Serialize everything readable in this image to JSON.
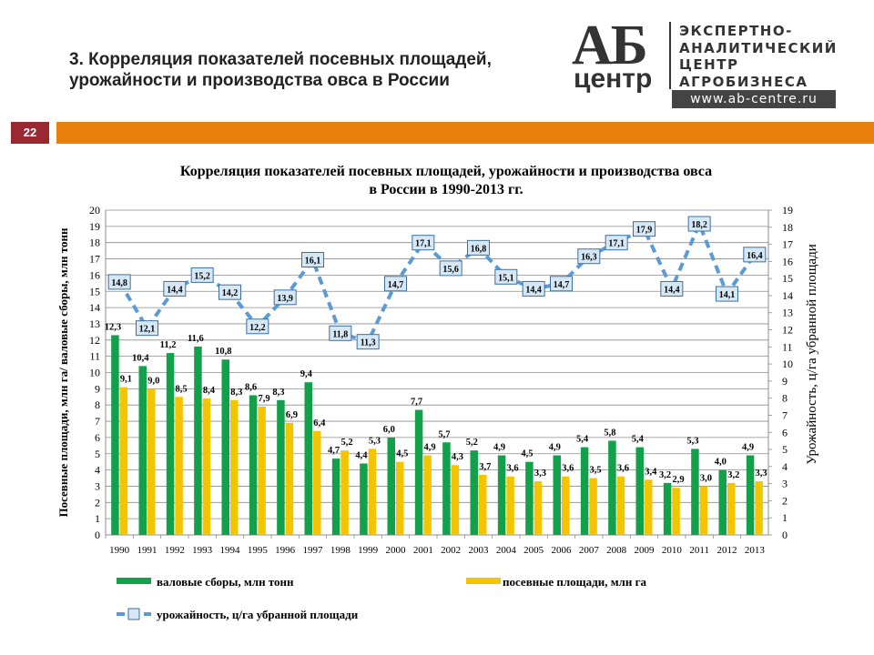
{
  "slide": {
    "title_line1": "3. Корреляция показателей посевных площадей,",
    "title_line2": "урожайности и производства овса в России",
    "page_number": "22"
  },
  "logo": {
    "mark_top": "АБ",
    "mark_bottom": "центр",
    "line1": "ЭКСПЕРТНО-",
    "line2": "АНАЛИТИЧЕСКИЙ",
    "line3": "ЦЕНТР",
    "line4": "АГРОБИЗНЕСА",
    "url": "www.ab-centre.ru"
  },
  "colors": {
    "accent_bar": "#e8800e",
    "page_badge": "#9b2830",
    "gross_harvest": "#12a04a",
    "sown_area": "#f5c400",
    "yield_line": "#5b9bd5",
    "yield_marker_fill": "#d6e8f5"
  },
  "chart_data": {
    "type": "bar",
    "title_line1": "Корреляция показателей посевных площадей, урожайности и производства овса",
    "title_line2": "в России в 1990-2013 гг.",
    "ylabel": "Посевные площади, млн га/ валовые сборы, млн тонн",
    "y2label": "Урожайность, ц/га убранной площади",
    "ylim": [
      0,
      20
    ],
    "y2lim": [
      0,
      19
    ],
    "grid": true,
    "legend_position": "bottom",
    "categories": [
      "1990",
      "1991",
      "1992",
      "1993",
      "1994",
      "1995",
      "1996",
      "1997",
      "1998",
      "1999",
      "2000",
      "2001",
      "2002",
      "2003",
      "2004",
      "2005",
      "2006",
      "2007",
      "2008",
      "2009",
      "2010",
      "2011",
      "2012",
      "2013"
    ],
    "series": [
      {
        "name": "валовые сборы, млн  тонн",
        "kind": "bar",
        "values": [
          12.3,
          10.4,
          11.2,
          11.6,
          10.8,
          8.6,
          8.3,
          9.4,
          4.7,
          4.4,
          6.0,
          7.7,
          5.7,
          5.2,
          4.9,
          4.5,
          4.9,
          5.4,
          5.8,
          5.4,
          3.2,
          5.3,
          4.0,
          4.9
        ],
        "labels": [
          "12,3",
          "10,4",
          "11,2",
          "11,6",
          "10,8",
          "8,6",
          "8,3",
          "9,4",
          "4,7",
          "4,4",
          "6,0",
          "7,7",
          "5,7",
          "5,2",
          "4,9",
          "4,5",
          "4,9",
          "5,4",
          "5,8",
          "5,4",
          "3,2",
          "5,3",
          "4,0",
          "4,9"
        ]
      },
      {
        "name": "посевные площади, млн га",
        "kind": "bar",
        "values": [
          9.1,
          9.0,
          8.5,
          8.4,
          8.3,
          7.9,
          6.9,
          6.4,
          5.2,
          5.3,
          4.5,
          4.9,
          4.3,
          3.7,
          3.6,
          3.3,
          3.6,
          3.5,
          3.6,
          3.4,
          2.9,
          3.0,
          3.2,
          3.3
        ],
        "labels": [
          "9,1",
          "9,0",
          "8,5",
          "8,4",
          "8,3",
          "7,9",
          "6,9",
          "6,4",
          "5,2",
          "5,3",
          "4,5",
          "4,9",
          "4,3",
          "3,7",
          "3,6",
          "3,3",
          "3,6",
          "3,5",
          "3,6",
          "3,4",
          "2,9",
          "3,0",
          "3,2",
          "3,3"
        ]
      },
      {
        "name": "урожайность, ц/га убранной площади",
        "kind": "line",
        "axis": "right",
        "values": [
          14.8,
          12.1,
          14.4,
          15.2,
          14.2,
          12.2,
          13.9,
          16.1,
          11.8,
          11.3,
          14.7,
          17.1,
          15.6,
          16.8,
          15.1,
          14.4,
          14.7,
          16.3,
          17.1,
          17.9,
          14.4,
          18.2,
          14.1,
          16.4
        ],
        "labels": [
          "14,8",
          "12,1",
          "14,4",
          "15,2",
          "14,2",
          "12,2",
          "13,9",
          "16,1",
          "11,8",
          "11,3",
          "14,7",
          "17,1",
          "15,6",
          "16,8",
          "15,1",
          "14,4",
          "14,7",
          "16,3",
          "17,1",
          "17,9",
          "14,4",
          "18,2",
          "14,1",
          "16,4"
        ]
      }
    ]
  }
}
